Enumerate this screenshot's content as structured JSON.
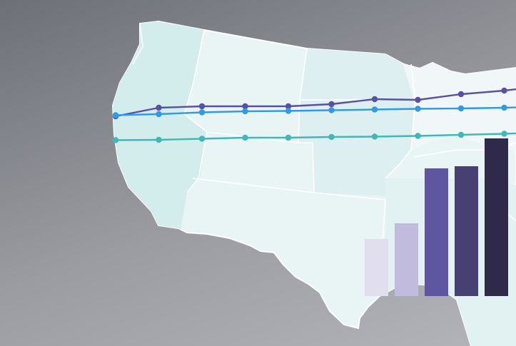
{
  "chart_data": {
    "type": "line+bar",
    "background": "map-of-united-states",
    "line_chart": {
      "series": [
        {
          "color": "#5b4fa3",
          "values": [
            54,
            78,
            82,
            82,
            82,
            88,
            102,
            100,
            116,
            126,
            140
          ]
        },
        {
          "color": "#2f9be6",
          "values": [
            57,
            60,
            65,
            68,
            69,
            71,
            73,
            75,
            76,
            78,
            81
          ]
        },
        {
          "color": "#3fb8b8",
          "values": [
            -13,
            -12,
            -9,
            -6,
            -6,
            -4,
            -3,
            -1,
            2,
            5,
            9
          ]
        }
      ]
    },
    "bar_chart": {
      "values": [
        80,
        102,
        179,
        182,
        221
      ],
      "colors": [
        "#e1dfee",
        "#c1bcdd",
        "#5f56a2",
        "#474073",
        "#302a4a"
      ]
    }
  },
  "colors": {
    "map_fill_light": "#e9f5f5",
    "map_fill_mid": "#d3ecec",
    "map_border": "#ffffff"
  }
}
